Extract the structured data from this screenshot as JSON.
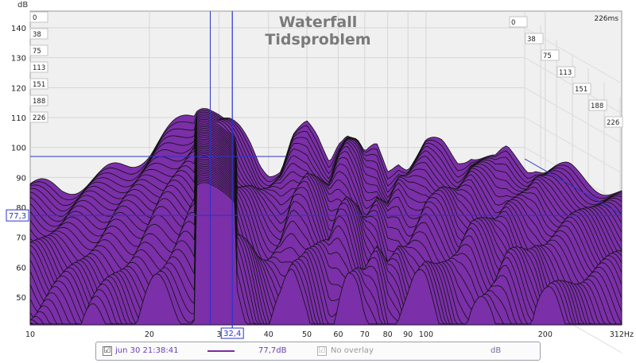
{
  "chart_data": {
    "type": "area",
    "title": "Waterfall",
    "subtitle": "Tidsproblem",
    "ylabel": "dB",
    "xunit": "Hz",
    "xscale": "log",
    "xlim": [
      10,
      312
    ],
    "ylim": [
      40,
      145
    ],
    "xticks": [
      "10",
      "20",
      "3",
      "40",
      "50",
      "60",
      "70",
      "80",
      "90",
      "100",
      "200",
      "312Hz"
    ],
    "yticks": [
      "140",
      "130",
      "120",
      "110",
      "100",
      "90",
      "80",
      "70",
      "60",
      "50"
    ],
    "ytick_values": [
      140,
      130,
      120,
      110,
      100,
      90,
      80,
      70,
      60,
      50
    ],
    "time_slice_labels": [
      "0",
      "38",
      "75",
      "113",
      "151",
      "188",
      "226"
    ],
    "depth_labels": [
      "0",
      "38",
      "75",
      "113",
      "151",
      "188",
      "226"
    ],
    "time_end_label": "226ms",
    "cursor": {
      "x_label": "32,4",
      "y_label": "77,3",
      "x_hz": 32.4,
      "y_db": 77.3
    },
    "reference_line_x_hz": 28.5,
    "reference_line_db": 97,
    "grid": true,
    "series": [
      {
        "name": "jun 30 21:38:41",
        "slice_ms": 0,
        "x": [
          10,
          12,
          15,
          18,
          20,
          22,
          25,
          27,
          28,
          30,
          32,
          34,
          36,
          38,
          40,
          43,
          46,
          50,
          53,
          57,
          60,
          63,
          67,
          70,
          75,
          80,
          85,
          90,
          95,
          100,
          110,
          120,
          130,
          140,
          150,
          160,
          170,
          180,
          190,
          200,
          230,
          260,
          290,
          312
        ],
        "values": [
          87,
          86,
          90,
          95,
          99,
          104,
          110,
          113,
          113,
          111,
          108,
          104,
          100,
          95,
          93,
          94,
          103,
          106,
          103,
          97,
          104,
          106,
          102,
          96,
          99,
          92,
          97,
          95,
          98,
          101,
          100,
          96,
          99,
          97,
          95,
          98,
          96,
          94,
          95,
          93,
          92,
          89,
          86,
          84
        ]
      }
    ]
  },
  "legend": {
    "measurement_checked": "☑",
    "measurement_name": "jun 30 21:38:41",
    "measurement_value": "77,7dB",
    "overlay_checked": "☑",
    "overlay_text": "No overlay",
    "unit": "dB",
    "series_color": "#7b2a9e"
  },
  "colors": {
    "fill": "#7b2fa8",
    "outline": "#111111",
    "cursor": "#2c33c8",
    "title": "#777777",
    "grid": "#d6d6d6",
    "plot_bg": "#f0f0f0"
  }
}
